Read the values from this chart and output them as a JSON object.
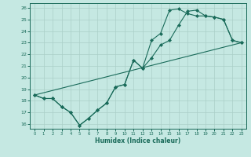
{
  "xlabel": "Humidex (Indice chaleur)",
  "xlim": [
    -0.5,
    23.5
  ],
  "ylim": [
    15.6,
    26.4
  ],
  "xticks": [
    0,
    1,
    2,
    3,
    4,
    5,
    6,
    7,
    8,
    9,
    10,
    11,
    12,
    13,
    14,
    15,
    16,
    17,
    18,
    19,
    20,
    21,
    22,
    23
  ],
  "yticks": [
    16,
    17,
    18,
    19,
    20,
    21,
    22,
    23,
    24,
    25,
    26
  ],
  "background_color": "#c5e8e2",
  "line_color": "#1a6b5a",
  "grid_color": "#aacfc8",
  "line1_x": [
    0,
    1,
    2,
    3,
    4,
    5,
    6,
    7,
    8,
    9,
    10,
    11,
    12,
    13,
    14,
    15,
    16,
    17,
    18,
    19,
    20,
    21,
    22,
    23
  ],
  "line1_y": [
    18.5,
    18.2,
    18.2,
    17.5,
    17.0,
    15.9,
    16.5,
    17.2,
    17.8,
    19.2,
    19.4,
    21.5,
    20.8,
    21.7,
    22.8,
    23.2,
    24.5,
    25.7,
    25.8,
    25.3,
    25.2,
    25.0,
    23.2,
    23.0
  ],
  "line2_x": [
    0,
    1,
    2,
    3,
    4,
    5,
    6,
    7,
    8,
    9,
    10,
    11,
    12,
    13,
    14,
    15,
    16,
    17,
    18,
    19,
    20,
    21,
    22,
    23
  ],
  "line2_y": [
    18.5,
    18.2,
    18.2,
    17.5,
    17.0,
    15.9,
    16.5,
    17.2,
    17.8,
    19.2,
    19.4,
    21.5,
    20.8,
    23.2,
    23.8,
    25.8,
    25.9,
    25.5,
    25.3,
    25.3,
    25.2,
    25.0,
    23.2,
    23.0
  ],
  "line3_x": [
    0,
    23
  ],
  "line3_y": [
    18.5,
    23.0
  ]
}
